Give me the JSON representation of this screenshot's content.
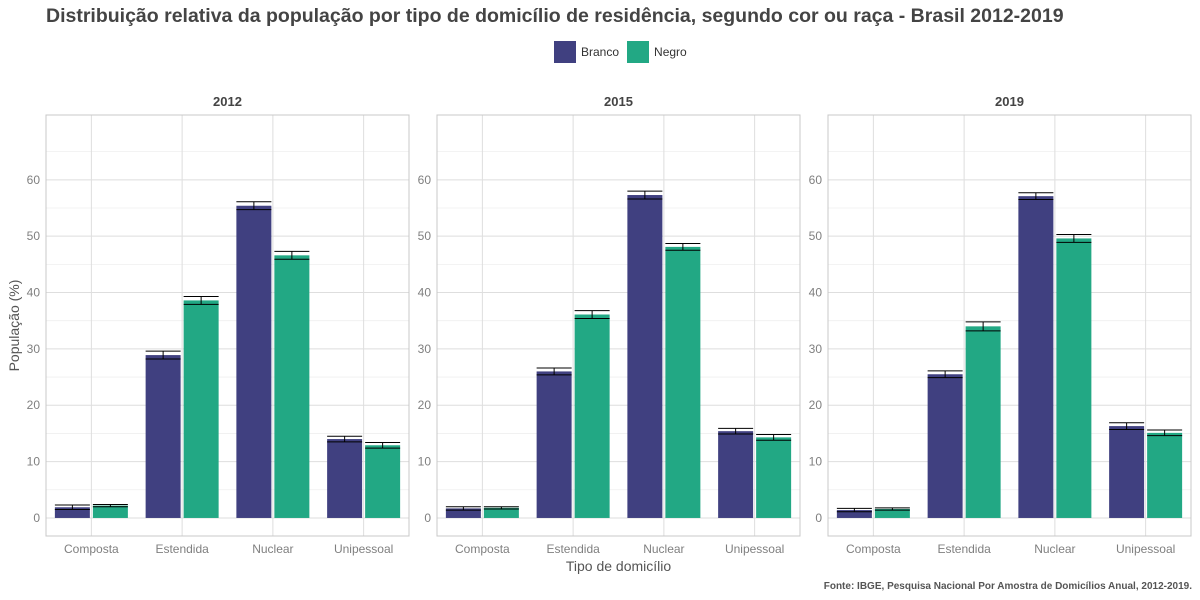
{
  "title": "Distribuição relativa da população por tipo de domicílio de residência, segundo cor ou raça - Brasil 2012-2019",
  "source": "Fonte: IBGE, Pesquisa Nacional Por Amostra de Domicílios Anual, 2012-2019.",
  "colors": {
    "Branco": "#404080",
    "Negro": "#22a884"
  },
  "chart_data": {
    "type": "bar",
    "xlabel": "Tipo de domicílio",
    "ylabel": "População (%)",
    "ylim": [
      -3.2,
      71.5
    ],
    "yticks": [
      0,
      10,
      20,
      30,
      40,
      50,
      60
    ],
    "grid": true,
    "legend_position": "top",
    "categories": [
      "Composta",
      "Estendida",
      "Nuclear",
      "Unipessoal"
    ],
    "panels": [
      {
        "title": "2012",
        "series": [
          {
            "name": "Branco",
            "values": [
              1.9,
              28.9,
              55.4,
              14.0
            ],
            "error": [
              0.4,
              0.7,
              0.7,
              0.5
            ]
          },
          {
            "name": "Negro",
            "values": [
              2.2,
              38.6,
              46.6,
              12.9
            ],
            "error": [
              0.2,
              0.7,
              0.7,
              0.5
            ]
          }
        ]
      },
      {
        "title": "2015",
        "series": [
          {
            "name": "Branco",
            "values": [
              1.7,
              26.0,
              57.3,
              15.4
            ],
            "error": [
              0.3,
              0.6,
              0.7,
              0.5
            ]
          },
          {
            "name": "Negro",
            "values": [
              1.8,
              36.1,
              48.1,
              14.3
            ],
            "error": [
              0.2,
              0.7,
              0.6,
              0.5
            ]
          }
        ]
      },
      {
        "title": "2019",
        "series": [
          {
            "name": "Branco",
            "values": [
              1.4,
              25.5,
              57.1,
              16.3
            ],
            "error": [
              0.3,
              0.6,
              0.6,
              0.6
            ]
          },
          {
            "name": "Negro",
            "values": [
              1.6,
              34.0,
              49.6,
              15.1
            ],
            "error": [
              0.2,
              0.8,
              0.7,
              0.5
            ]
          }
        ]
      }
    ]
  }
}
